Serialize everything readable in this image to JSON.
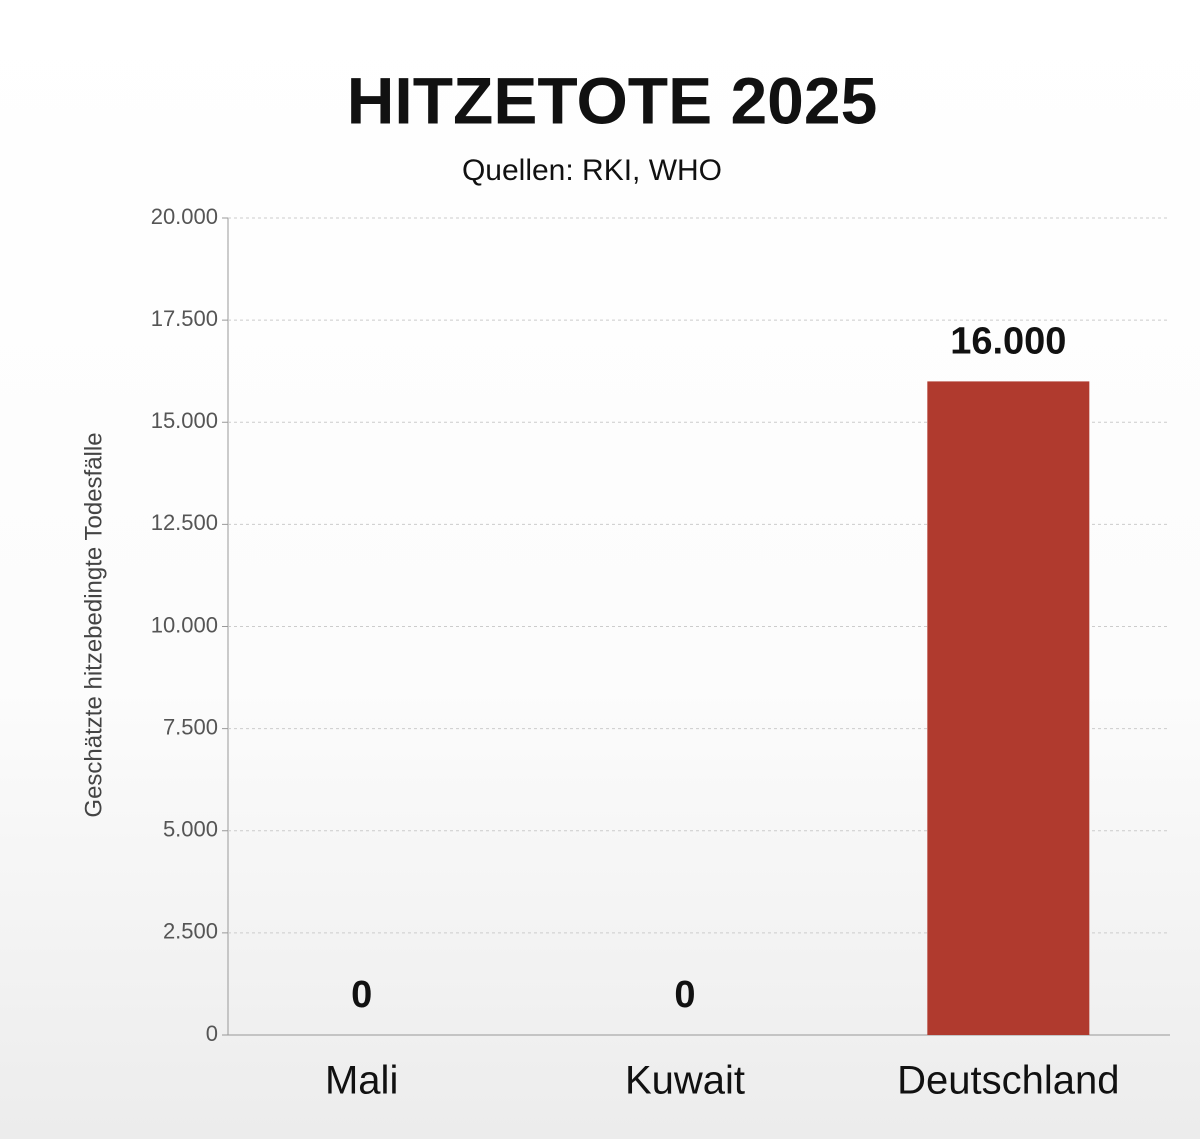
{
  "chart_data": {
    "type": "bar",
    "title": "HITZETOTE 2025",
    "subtitle": "Quellen: RKI, WHO",
    "y_label": "Geschätzte hitzebedingte Todesfälle",
    "categories": [
      "Mali",
      "Kuwait",
      "Deutschland"
    ],
    "values": [
      0,
      0,
      16000
    ],
    "value_labels": [
      "0",
      "0",
      "16.000"
    ],
    "color": "#b03a2e",
    "ylim": [
      0,
      20000
    ],
    "yticks": [
      0,
      {
        "value": 2500,
        "label": "2.500"
      },
      {
        "value": 5000,
        "label": "5.000"
      },
      {
        "value": 7500,
        "label": "7.500"
      },
      {
        "value": 10000,
        "label": "10.000"
      },
      {
        "value": 12500,
        "label": "12.500"
      },
      {
        "value": 15000,
        "label": "15.000"
      },
      {
        "value": 17500,
        "label": "17.500"
      },
      {
        "value": 20000,
        "label": "20.000"
      }
    ],
    "grid": true
  }
}
